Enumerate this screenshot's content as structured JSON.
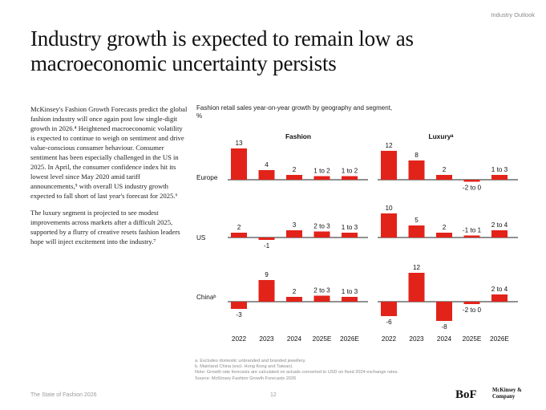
{
  "header": {
    "section": "Industry Outlook"
  },
  "title": "Industry growth is expected to remain low as macroeconomic uncertainty persists",
  "body": {
    "p1": "McKinsey's Fashion Growth Forecasts predict the global fashion industry will once again post low single-digit growth in 2026.⁴ Heightened macroeconomic volatility is expected to continue to weigh on sentiment and drive value-conscious consumer behaviour. Consumer sentiment has been especially challenged in the US in 2025. In April, the consumer confidence index hit its lowest level since May 2020 amid tariff announcements,⁵ with overall US industry growth expected to fall short of last year's forecast for 2025.⁶",
    "p2": "The luxury segment is projected to see modest improvements across markets after a difficult 2025, supported by a flurry of creative resets fashion leaders hope will inject excitement into the industry.⁷"
  },
  "chart_data": {
    "type": "bar",
    "title": "Fashion retail sales year-on-year growth by geography and segment,",
    "unit": "%",
    "categories": [
      "2022",
      "2023",
      "2024",
      "2025E",
      "2026E"
    ],
    "colors": {
      "bar": "#e2231a",
      "text": "#111111",
      "axis": "#222222"
    },
    "panels": [
      {
        "segment": "Fashion",
        "geography": "Europe",
        "values": [
          13,
          4,
          2,
          1.5,
          1.5
        ],
        "labels": [
          "13",
          "4",
          "2",
          "1 to 2",
          "1 to 2"
        ]
      },
      {
        "segment": "Luxuryᵃ",
        "geography": "Europe",
        "values": [
          12,
          8,
          2,
          -0.5,
          2
        ],
        "labels": [
          "12",
          "8",
          "2",
          "-2 to 0",
          "1 to 3"
        ]
      },
      {
        "segment": "Fashion",
        "geography": "US",
        "values": [
          2,
          -1,
          3,
          2.5,
          2
        ],
        "labels": [
          "2",
          "-1",
          "3",
          "2 to 3",
          "1 to 3"
        ]
      },
      {
        "segment": "Luxuryᵃ",
        "geography": "US",
        "values": [
          10,
          5,
          2,
          0,
          3
        ],
        "labels": [
          "10",
          "5",
          "2",
          "-1 to 1",
          "2 to 4"
        ]
      },
      {
        "segment": "Fashion",
        "geography": "Chinaᵇ",
        "values": [
          -3,
          9,
          2,
          2.5,
          2
        ],
        "labels": [
          "-3",
          "9",
          "2",
          "2 to 3",
          "1 to 3"
        ]
      },
      {
        "segment": "Luxuryᵃ",
        "geography": "Chinaᵇ",
        "values": [
          -6,
          12,
          -8,
          -1,
          3
        ],
        "labels": [
          "-6",
          "12",
          "-8",
          "-2 to 0",
          "2 to 4"
        ]
      }
    ],
    "segments": [
      "Fashion",
      "Luxuryᵃ"
    ],
    "geographies": [
      "Europe",
      "US",
      "Chinaᵇ"
    ],
    "grid": false,
    "legend": "none"
  },
  "footnotes": {
    "a": "a. Excludes domestic unbranded and branded jewellery.",
    "b": "b. Mainland China (excl. Hong Kong and Taiwan).",
    "note": "Note: Growth rate forecasts are calculated on actuals converted to USD on fixed 2024 exchange rates.",
    "source": "Source: McKinsey Fashion Growth Forecasts 2026"
  },
  "footer": {
    "publication": "The State of Fashion 2026",
    "page": "12",
    "logo_bof": "BoF",
    "logo_mck": "McKinsey & Company"
  }
}
